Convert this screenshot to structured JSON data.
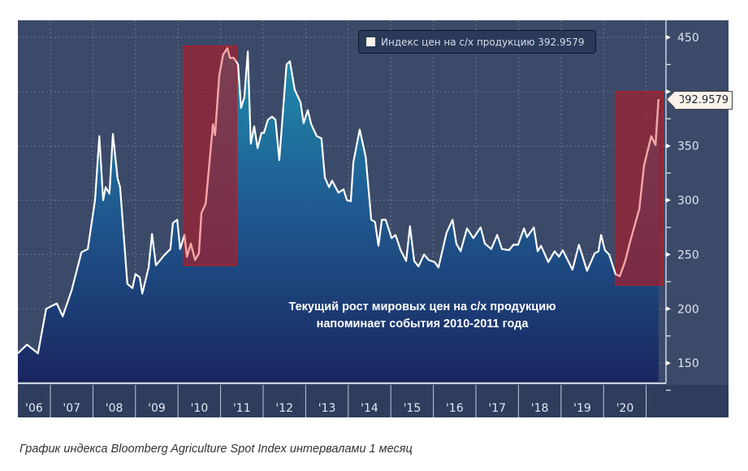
{
  "legend": {
    "label": "Индекс цен на с/х продукцию 392.9579"
  },
  "last_value_tag": "392.9579",
  "annotation": {
    "line1": "Текущий рост мировых цен на с/х продукцию",
    "line2": "напоминает события 2010-2011 года"
  },
  "caption": "График индекса Bloomberg Agriculture Spot Index интервалами 1 месяц",
  "colors": {
    "panel": "#3b4a69",
    "axis_band": "#2e3d5c",
    "fill_top": "#1f8fae",
    "fill_bottom": "#1a2660",
    "line": "#ffffff",
    "highlight_box": "#a3202e",
    "highlight_line": "#f6a3a3"
  },
  "chart_data": {
    "type": "area",
    "title": "Индекс цен на с/х продукцию",
    "xlabel": "",
    "ylabel": "",
    "ylim": [
      105,
      465
    ],
    "xlim": [
      2006.0,
      2021.5
    ],
    "yticks": [
      150,
      200,
      250,
      300,
      350,
      400,
      450
    ],
    "xtick_labels": [
      "'06",
      "'07",
      "'08",
      "'09",
      "'10",
      "'11",
      "'12",
      "'13",
      "'14",
      "'15",
      "'16",
      "'17",
      "'18",
      "'19",
      "'20"
    ],
    "grid": true,
    "legend_position": "top-right",
    "highlight_periods": [
      {
        "x": [
          2010.13,
          2011.37
        ],
        "y": [
          240,
          442
        ]
      },
      {
        "x": [
          2020.28,
          2021.39
        ],
        "y": [
          222,
          400
        ]
      }
    ],
    "x": [
      2006.23,
      2006.45,
      2006.71,
      2006.9,
      2007.15,
      2007.29,
      2007.5,
      2007.73,
      2007.88,
      2008.05,
      2008.15,
      2008.24,
      2008.3,
      2008.39,
      2008.47,
      2008.58,
      2008.64,
      2008.81,
      2008.93,
      2009.0,
      2009.1,
      2009.16,
      2009.31,
      2009.39,
      2009.48,
      2009.67,
      2009.82,
      2009.88,
      2009.98,
      2010.05,
      2010.15,
      2010.21,
      2010.3,
      2010.4,
      2010.49,
      2010.55,
      2010.65,
      2010.82,
      2010.87,
      2010.97,
      2011.06,
      2011.16,
      2011.22,
      2011.31,
      2011.41,
      2011.48,
      2011.56,
      2011.64,
      2011.71,
      2011.79,
      2011.87,
      2011.96,
      2012.02,
      2012.11,
      2012.21,
      2012.29,
      2012.38,
      2012.55,
      2012.63,
      2012.74,
      2012.88,
      2012.95,
      2013.05,
      2013.13,
      2013.26,
      2013.37,
      2013.45,
      2013.55,
      2013.62,
      2013.77,
      2013.89,
      2013.97,
      2014.06,
      2014.12,
      2014.27,
      2014.41,
      2014.54,
      2014.63,
      2014.71,
      2014.79,
      2014.88,
      2015.02,
      2015.11,
      2015.23,
      2015.36,
      2015.45,
      2015.55,
      2015.65,
      2015.78,
      2015.89,
      2016.03,
      2016.12,
      2016.31,
      2016.45,
      2016.54,
      2016.64,
      2016.79,
      2016.94,
      2017.11,
      2017.21,
      2017.36,
      2017.5,
      2017.61,
      2017.78,
      2017.88,
      2017.99,
      2018.13,
      2018.2,
      2018.36,
      2018.45,
      2018.53,
      2018.7,
      2018.85,
      2018.95,
      2019.04,
      2019.27,
      2019.42,
      2019.61,
      2019.79,
      2019.88,
      2019.94,
      2020.03,
      2020.13,
      2020.28,
      2020.38,
      2020.51,
      2020.61,
      2020.84,
      2020.95,
      2021.12,
      2021.22,
      2021.29
    ],
    "values": [
      159,
      167,
      159,
      200,
      205,
      193,
      217,
      252,
      255,
      300,
      359,
      300,
      312,
      306,
      361,
      320,
      312,
      223,
      219,
      232,
      229,
      214,
      238,
      269,
      240,
      249,
      255,
      279,
      282,
      255,
      268,
      248,
      260,
      245,
      251,
      288,
      297,
      370,
      360,
      415,
      434,
      440,
      431,
      431,
      425,
      385,
      395,
      437,
      352,
      368,
      348,
      362,
      362,
      374,
      377,
      374,
      337,
      425,
      428,
      402,
      390,
      371,
      383,
      370,
      359,
      357,
      321,
      312,
      318,
      307,
      310,
      300,
      299,
      335,
      365,
      340,
      282,
      280,
      258,
      282,
      282,
      265,
      268,
      254,
      244,
      276,
      244,
      239,
      250,
      245,
      243,
      238,
      270,
      282,
      260,
      253,
      274,
      265,
      275,
      260,
      255,
      268,
      255,
      254,
      259,
      259,
      274,
      266,
      275,
      253,
      258,
      243,
      253,
      248,
      254,
      236,
      259,
      235,
      251,
      253,
      268,
      254,
      250,
      232,
      230,
      244,
      260,
      292,
      332,
      359,
      351,
      393
    ]
  }
}
